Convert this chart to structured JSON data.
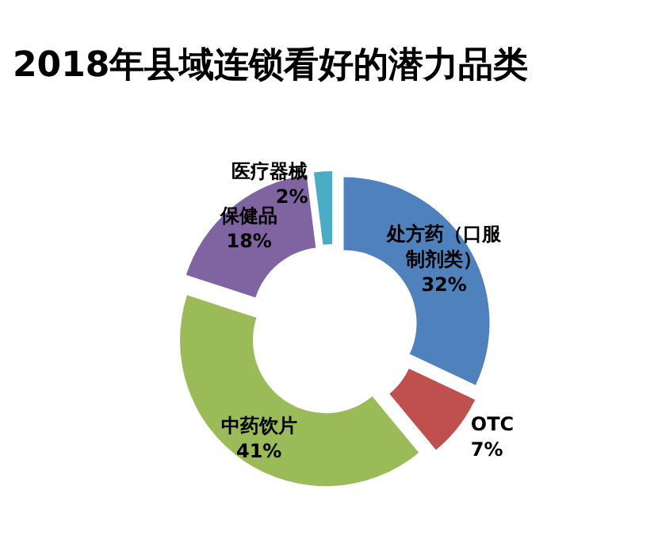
{
  "chart_data": {
    "type": "donut",
    "title": "2018年县域连锁看好的潜力品类",
    "categories": [
      "处方药（口服制剂类）",
      "OTC",
      "中药饮片",
      "保健品",
      "医疗器械"
    ],
    "values": [
      32,
      7,
      41,
      18,
      2
    ],
    "colors": [
      "#4f81bd",
      "#c0504d",
      "#9bbb59",
      "#8064a2",
      "#4bacc6"
    ],
    "value_labels": [
      "32%",
      "7%",
      "41%",
      "18%",
      "2%"
    ]
  }
}
